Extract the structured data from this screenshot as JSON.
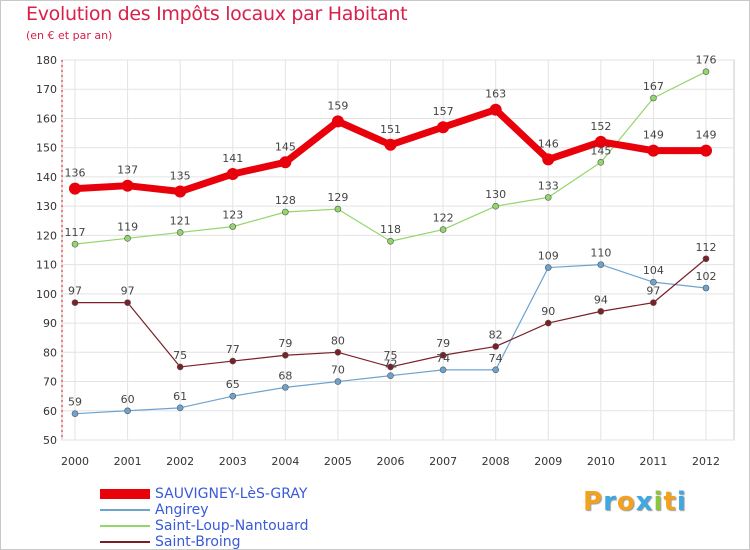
{
  "header": {
    "title": "Evolution des Impôts locaux par Habitant",
    "subtitle": "(en € et par an)"
  },
  "logo": {
    "text": "Proxiti",
    "letters": [
      {
        "char": "P",
        "color": "#f2a21c"
      },
      {
        "char": "r",
        "color": "#3fa8e0"
      },
      {
        "char": "o",
        "color": "#f2a21c"
      },
      {
        "char": "x",
        "color": "#3fa8e0"
      },
      {
        "char": "i",
        "color": "#8cc63f"
      },
      {
        "char": "t",
        "color": "#f2a21c"
      },
      {
        "char": "i",
        "color": "#3fa8e0"
      }
    ]
  },
  "chart_data": {
    "type": "line",
    "title": "Evolution des Impôts locaux par Habitant",
    "subtitle": "(en € et par an)",
    "xlabel": "",
    "ylabel": "",
    "x": [
      "2000",
      "2001",
      "2002",
      "2003",
      "2004",
      "2005",
      "2006",
      "2007",
      "2008",
      "2009",
      "2010",
      "2011",
      "2012"
    ],
    "ylim": [
      50,
      180
    ],
    "yticks": [
      50,
      60,
      70,
      80,
      90,
      100,
      110,
      120,
      130,
      140,
      150,
      160,
      170,
      180
    ],
    "grid": true,
    "legend_position": "bottom-left",
    "series": [
      {
        "name": "SAUVIGNEY-LèS-GRAY",
        "color": "#e8000b",
        "emphasis": true,
        "values": [
          136,
          137,
          135,
          141,
          145,
          159,
          151,
          157,
          163,
          146,
          152,
          149,
          149
        ]
      },
      {
        "name": "Angirey",
        "color": "#6ea3d0",
        "emphasis": false,
        "values": [
          59,
          60,
          61,
          65,
          68,
          70,
          72,
          74,
          74,
          109,
          110,
          104,
          102
        ]
      },
      {
        "name": "Saint-Loup-Nantouard",
        "color": "#93d66b",
        "emphasis": false,
        "values": [
          117,
          119,
          121,
          123,
          128,
          129,
          118,
          122,
          130,
          133,
          145,
          167,
          176
        ]
      },
      {
        "name": "Saint-Broing",
        "color": "#7a2026",
        "emphasis": false,
        "values": [
          97,
          97,
          75,
          77,
          79,
          80,
          75,
          79,
          82,
          90,
          94,
          97,
          112
        ]
      }
    ]
  }
}
